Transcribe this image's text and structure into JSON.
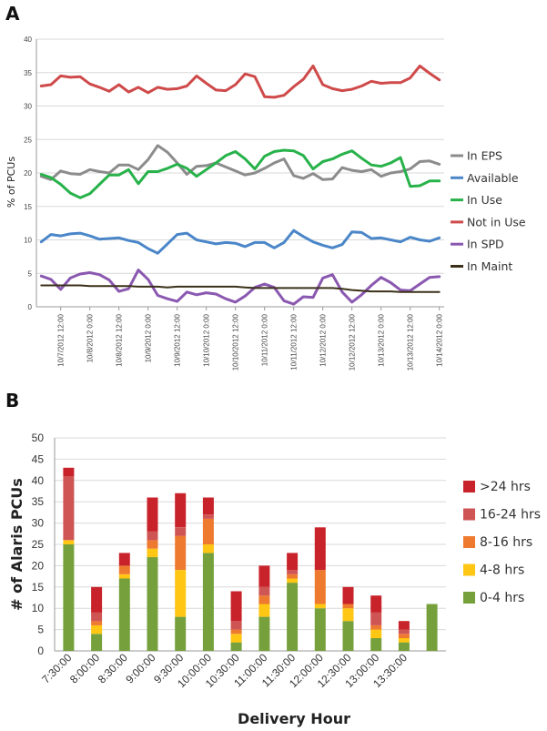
{
  "panels": {
    "a": "A",
    "b": "B"
  },
  "chart_data": [
    {
      "type": "line",
      "ylabel": "% of PCUs",
      "ylim": [
        0,
        40
      ],
      "yticks": [
        0,
        5,
        10,
        15,
        20,
        25,
        30,
        35,
        40
      ],
      "xticklabels": [
        "10/7/2012 12:00",
        "10/8/2012 0:00",
        "10/8/2012 12:00",
        "10/9/2012 0:00",
        "10/9/2012 12:00",
        "10/10/2012 0:00",
        "10/10/2012 12:00",
        "10/11/2012 0:00",
        "10/11/2012 12:00",
        "10/12/2012 0:00",
        "10/12/2012 12:00",
        "10/13/2012 0:00",
        "10/13/2012 12:00",
        "10/14/2012 0:00"
      ],
      "grid": true,
      "legend_position": "right",
      "series": [
        {
          "name": "In EPS",
          "color": "#8c8c8c",
          "values": [
            19.5,
            19.0,
            20.3,
            19.9,
            19.8,
            20.5,
            20.2,
            20.0,
            21.2,
            21.2,
            20.5,
            22.0,
            24.1,
            23.1,
            21.5,
            19.8,
            21.0,
            21.1,
            21.5,
            20.9,
            20.3,
            19.7,
            20.0,
            20.7,
            21.5,
            22.1,
            19.6,
            19.2,
            19.9,
            19.0,
            19.1,
            20.8,
            20.4,
            20.2,
            20.5,
            19.5,
            20.0,
            20.2,
            20.6,
            21.7,
            21.8,
            21.3
          ]
        },
        {
          "name": "Available",
          "color": "#4a86c8",
          "values": [
            9.7,
            10.8,
            10.6,
            10.9,
            11.0,
            10.6,
            10.1,
            10.2,
            10.3,
            9.9,
            9.6,
            8.7,
            8.0,
            9.4,
            10.8,
            11.0,
            10.0,
            9.7,
            9.4,
            9.6,
            9.5,
            9.0,
            9.6,
            9.6,
            8.8,
            9.6,
            11.4,
            10.5,
            9.7,
            9.2,
            8.8,
            9.3,
            11.2,
            11.1,
            10.2,
            10.3,
            10.0,
            9.7,
            10.4,
            10.0,
            9.8,
            10.3
          ]
        },
        {
          "name": "In Use",
          "color": "#27b24a",
          "values": [
            19.8,
            19.3,
            18.3,
            17.0,
            16.3,
            16.9,
            18.3,
            19.7,
            19.7,
            20.5,
            18.4,
            20.2,
            20.2,
            20.7,
            21.3,
            20.7,
            19.5,
            20.5,
            21.5,
            22.6,
            23.2,
            22.1,
            20.6,
            22.5,
            23.2,
            23.4,
            23.3,
            22.6,
            20.6,
            21.7,
            22.1,
            22.8,
            23.3,
            22.2,
            21.2,
            21.0,
            21.5,
            22.3,
            18.0,
            18.1,
            18.8,
            18.8
          ]
        },
        {
          "name": "Not in Use",
          "color": "#cf4a4a",
          "values": [
            33.0,
            33.2,
            34.5,
            34.3,
            34.4,
            33.3,
            32.8,
            32.2,
            33.2,
            32.1,
            32.8,
            32.0,
            32.8,
            32.5,
            32.6,
            33.0,
            34.5,
            33.4,
            32.4,
            32.3,
            33.2,
            34.8,
            34.4,
            31.4,
            31.3,
            31.6,
            32.9,
            34.0,
            36.0,
            33.2,
            32.6,
            32.3,
            32.5,
            33.0,
            33.7,
            33.4,
            33.5,
            33.5,
            34.2,
            36.0,
            34.9,
            33.9
          ]
        },
        {
          "name": "In SPD",
          "color": "#8a58b0",
          "values": [
            4.6,
            4.1,
            2.6,
            4.3,
            4.9,
            5.1,
            4.8,
            4.0,
            2.3,
            2.7,
            5.5,
            4.1,
            1.7,
            1.2,
            0.8,
            2.2,
            1.8,
            2.1,
            1.9,
            1.2,
            0.7,
            1.6,
            2.9,
            3.4,
            2.9,
            0.9,
            0.4,
            1.5,
            1.4,
            4.3,
            4.8,
            2.2,
            0.7,
            1.8,
            3.2,
            4.4,
            3.6,
            2.5,
            2.4,
            3.4,
            4.4,
            4.5
          ]
        },
        {
          "name": "In Maint",
          "color": "#3b3018",
          "values": [
            3.2,
            3.2,
            3.2,
            3.2,
            3.2,
            3.1,
            3.1,
            3.1,
            3.1,
            3.1,
            3.0,
            3.0,
            3.0,
            2.9,
            3.0,
            3.0,
            3.0,
            3.0,
            3.0,
            3.0,
            3.0,
            2.9,
            2.8,
            2.8,
            2.8,
            2.8,
            2.8,
            2.8,
            2.8,
            2.8,
            2.8,
            2.7,
            2.5,
            2.4,
            2.3,
            2.3,
            2.3,
            2.2,
            2.2,
            2.2,
            2.2,
            2.2
          ]
        }
      ]
    },
    {
      "type": "bar",
      "stacked": true,
      "xlabel": "Delivery Hour",
      "ylabel": "# of Alaris PCUs",
      "ylim": [
        0,
        50
      ],
      "yticks": [
        0,
        5,
        10,
        15,
        20,
        25,
        30,
        35,
        40,
        45,
        50
      ],
      "categories": [
        "7:30:00",
        "8:00:00",
        "8:30:00",
        "9:00:00",
        "9:30:00",
        "10:00:00",
        "10:30:00",
        "11:00:00",
        "11:30:00",
        "12:00:00",
        "12:30:00",
        "13:00:00",
        "13:30:00",
        ""
      ],
      "grid": true,
      "legend_position": "right",
      "series": [
        {
          "name": "0-4 hrs",
          "color": "#76a03c",
          "values": [
            25,
            4,
            17,
            22,
            8,
            23,
            2,
            8,
            16,
            10,
            7,
            3,
            2,
            11
          ]
        },
        {
          "name": "4-8 hrs",
          "color": "#ffc614",
          "values": [
            1,
            2,
            1,
            2,
            11,
            2,
            2,
            3,
            1,
            1,
            3,
            2,
            1,
            0
          ]
        },
        {
          "name": "8-16 hrs",
          "color": "#ee7a2f",
          "values": [
            0,
            1,
            2,
            2,
            8,
            6,
            1,
            2,
            1,
            8,
            1,
            1,
            1,
            0
          ]
        },
        {
          "name": "16-24 hrs",
          "color": "#cf5555",
          "values": [
            15,
            2,
            0,
            2,
            2,
            1,
            2,
            2,
            1,
            0,
            0,
            3,
            1,
            0
          ]
        },
        {
          "name": ">24 hrs",
          "color": "#c8222a",
          "values": [
            2,
            6,
            3,
            8,
            8,
            4,
            7,
            5,
            4,
            10,
            4,
            4,
            2,
            0
          ]
        }
      ]
    }
  ]
}
